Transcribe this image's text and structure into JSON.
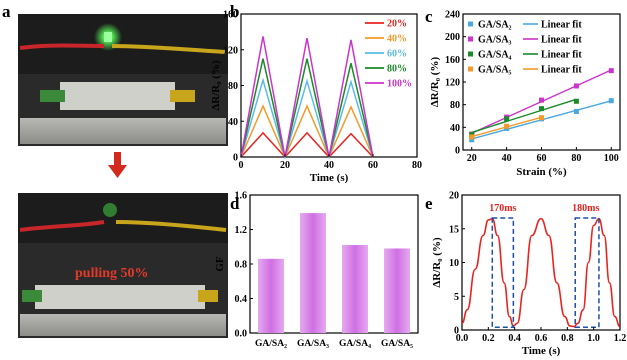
{
  "panels": {
    "a": {
      "label": "a",
      "annotation": "pulling  50%"
    },
    "b": {
      "label": "b"
    },
    "c": {
      "label": "c"
    },
    "d": {
      "label": "d"
    },
    "e": {
      "label": "e",
      "annotations": [
        "170ms",
        "180ms"
      ]
    }
  },
  "colors": {
    "b_series": [
      "#e8241f",
      "#f39a2b",
      "#5bbbe6",
      "#1a8a2a",
      "#cc33cc"
    ],
    "c_series": [
      "#4aa8e0",
      "#cc33cc",
      "#1a8a2a",
      "#f39a2b"
    ],
    "d_bar": "#d98ce8",
    "e_curve": "#e8241f",
    "e_box": "#1f4fa8",
    "arrow": "#d42a1e"
  },
  "chart_data": [
    {
      "panel": "b",
      "type": "line",
      "xlabel": "Time (s)",
      "ylabel": "ΔR/R₀ (%)",
      "xlim": [
        0,
        80
      ],
      "ylim": [
        0,
        160
      ],
      "xticks": [
        0,
        20,
        40,
        60,
        80
      ],
      "yticks": [
        0,
        40,
        80,
        120,
        160
      ],
      "legend_position": "top-right",
      "x": [
        0,
        10,
        20,
        30,
        40,
        50,
        60
      ],
      "series": [
        {
          "name": "20%",
          "values": [
            0,
            27,
            0,
            27,
            0,
            26,
            0
          ]
        },
        {
          "name": "40%",
          "values": [
            0,
            57,
            0,
            57,
            0,
            56,
            0
          ]
        },
        {
          "name": "60%",
          "values": [
            0,
            86,
            0,
            85,
            0,
            84,
            0
          ]
        },
        {
          "name": "80%",
          "values": [
            0,
            110,
            0,
            110,
            0,
            105,
            0
          ]
        },
        {
          "name": "100%",
          "values": [
            0,
            135,
            0,
            133,
            0,
            131,
            0
          ]
        }
      ]
    },
    {
      "panel": "c",
      "type": "scatter",
      "xlabel": "Strain (%)",
      "ylabel": "ΔR/R₀ (%)",
      "xlim": [
        15,
        105
      ],
      "ylim": [
        0,
        240
      ],
      "xticks": [
        20,
        40,
        60,
        80,
        100
      ],
      "yticks": [
        0,
        40,
        80,
        120,
        160,
        200,
        240
      ],
      "legend_position": "top-left",
      "fit_label": "Linear fit",
      "series": [
        {
          "name": "GA/SA₂",
          "x": [
            20,
            40,
            60,
            80,
            100
          ],
          "values": [
            18,
            38,
            55,
            68,
            87
          ]
        },
        {
          "name": "GA/SA₃",
          "x": [
            20,
            40,
            60,
            80,
            100
          ],
          "values": [
            28,
            58,
            88,
            113,
            140
          ]
        },
        {
          "name": "GA/SA₄",
          "x": [
            20,
            40,
            60,
            80
          ],
          "values": [
            27,
            55,
            73,
            86
          ]
        },
        {
          "name": "GA/SA₅",
          "x": [
            20,
            40,
            60
          ],
          "values": [
            23,
            42,
            57
          ]
        }
      ]
    },
    {
      "panel": "d",
      "type": "bar",
      "ylabel": "GF",
      "ylim": [
        0,
        1.6
      ],
      "yticks": [
        0.0,
        0.4,
        0.8,
        1.2,
        1.6
      ],
      "categories": [
        "GA/SA₂",
        "GA/SA₃",
        "GA/SA₄",
        "GA/SA₅"
      ],
      "values": [
        0.86,
        1.39,
        1.02,
        0.98
      ]
    },
    {
      "panel": "e",
      "type": "line",
      "xlabel": "Time (s)",
      "ylabel": "ΔR/R₀ (%)",
      "xlim": [
        0,
        1.2
      ],
      "ylim": [
        0,
        20
      ],
      "xticks": [
        "0.0",
        "0.2",
        "0.4",
        "0.6",
        "0.8",
        "1.0",
        "1.2"
      ],
      "yticks": [
        0,
        5,
        10,
        15,
        20
      ],
      "x": [
        0.0,
        0.04,
        0.1,
        0.16,
        0.2,
        0.23,
        0.27,
        0.32,
        0.36,
        0.39,
        0.42,
        0.47,
        0.53,
        0.6,
        0.66,
        0.72,
        0.78,
        0.82,
        0.85,
        0.88,
        0.92,
        0.96,
        1.0,
        1.04,
        1.08,
        1.12,
        1.16,
        1.2
      ],
      "values": [
        1,
        3,
        9,
        14,
        16.3,
        16.5,
        14,
        7,
        2,
        0.6,
        1,
        6,
        14,
        16.5,
        14,
        7,
        2,
        0.6,
        0.5,
        1,
        3,
        10,
        15.5,
        16.5,
        14,
        7,
        2,
        0.5
      ]
    }
  ]
}
